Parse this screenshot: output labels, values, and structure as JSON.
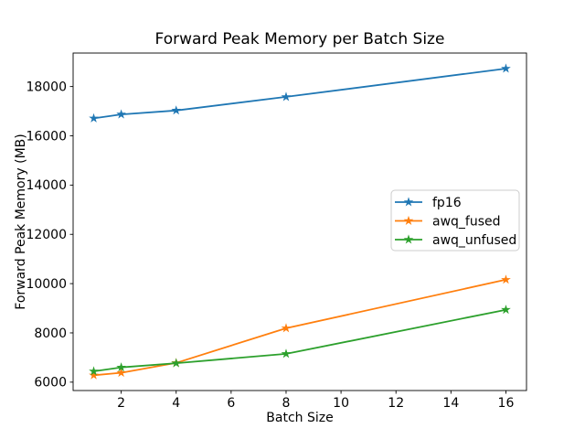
{
  "figure": {
    "background": "#ffffff"
  },
  "chart_data": {
    "type": "line",
    "title": "Forward Peak Memory per Batch Size",
    "xlabel": "Batch Size",
    "ylabel": "Forward Peak Memory (MB)",
    "x": [
      1,
      2,
      4,
      8,
      16
    ],
    "series": [
      {
        "name": "fp16",
        "color": "#1f77b4",
        "values": [
          16710,
          16870,
          17030,
          17580,
          18730
        ]
      },
      {
        "name": "awq_fused",
        "color": "#ff7f0e",
        "values": [
          6280,
          6380,
          6780,
          8190,
          10160
        ]
      },
      {
        "name": "awq_unfused",
        "color": "#2ca02c",
        "values": [
          6440,
          6600,
          6770,
          7150,
          8940
        ]
      }
    ],
    "marker": "star",
    "line_width": 1.8,
    "xticks": [
      2,
      4,
      6,
      8,
      10,
      12,
      14,
      16
    ],
    "yticks": [
      6000,
      8000,
      10000,
      12000,
      14000,
      16000,
      18000
    ],
    "xlim": [
      0.25,
      16.75
    ],
    "ylim": [
      5660,
      19360
    ],
    "grid": false,
    "legend": {
      "position": "center-right",
      "entries": [
        "fp16",
        "awq_fused",
        "awq_unfused"
      ]
    }
  }
}
